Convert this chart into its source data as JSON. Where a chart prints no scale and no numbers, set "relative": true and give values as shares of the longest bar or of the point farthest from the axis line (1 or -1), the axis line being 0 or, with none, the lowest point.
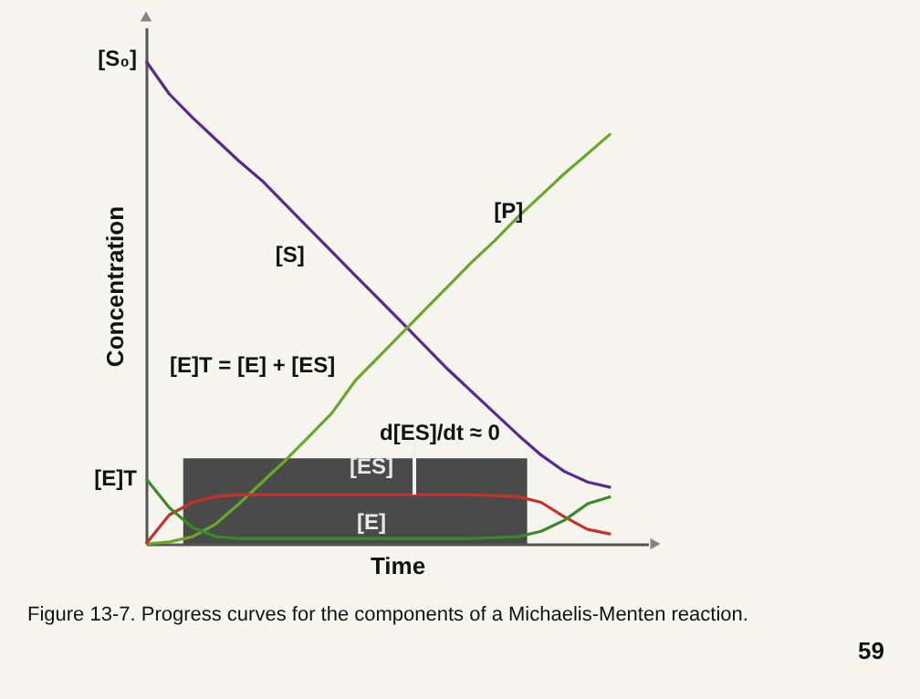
{
  "chart_data": {
    "type": "line",
    "relative": true,
    "xlabel": "Time",
    "ylabel": "Concentration",
    "grid": false,
    "marker": "none",
    "categories": [
      null,
      null,
      null,
      null,
      null,
      null,
      null,
      null,
      null,
      null,
      null,
      null,
      null,
      null,
      null,
      null,
      null,
      null,
      null,
      null,
      null
    ],
    "series": [
      {
        "name": "[S]",
        "color": "#5a2a8a",
        "values": [
          1.0,
          0.932,
          0.883,
          0.838,
          0.793,
          0.752,
          0.703,
          0.654,
          0.605,
          0.556,
          0.508,
          0.459,
          0.41,
          0.361,
          0.316,
          0.271,
          0.226,
          0.184,
          0.15,
          0.128,
          0.117
        ]
      },
      {
        "name": "[P]",
        "color": "#6aa82a",
        "values": [
          0,
          0.004,
          0.015,
          0.041,
          0.083,
          0.128,
          0.173,
          0.222,
          0.271,
          0.338,
          0.387,
          0.436,
          0.485,
          0.534,
          0.583,
          0.628,
          0.677,
          0.722,
          0.767,
          0.808,
          0.85
        ]
      },
      {
        "name": "[ES]",
        "color": "#c8302a",
        "values": [
          0,
          0.06,
          0.086,
          0.098,
          0.102,
          0.102,
          0.102,
          0.102,
          0.102,
          0.102,
          0.102,
          0.102,
          0.102,
          0.102,
          0.102,
          0.1,
          0.098,
          0.086,
          0.056,
          0.03,
          0.02
        ]
      },
      {
        "name": "[E]",
        "color": "#3a8a2a",
        "values": [
          0.135,
          0.075,
          0.034,
          0.015,
          0.011,
          0.011,
          0.011,
          0.011,
          0.011,
          0.011,
          0.011,
          0.011,
          0.011,
          0.011,
          0.011,
          0.013,
          0.015,
          0.026,
          0.049,
          0.083,
          0.098
        ]
      }
    ],
    "annotations": [
      "[S₀]",
      "[E]T",
      "[E]T = [E] + [ES]",
      "d[ES]/dt ≈ 0",
      "Figure 13-7. Progress curves for the components of a Michaelis-Menten reaction.",
      "59"
    ]
  }
}
